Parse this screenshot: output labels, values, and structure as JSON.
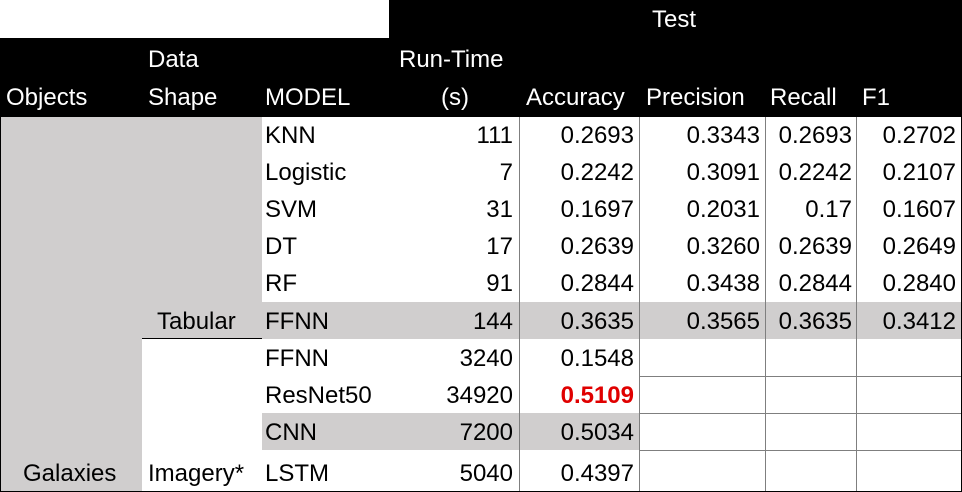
{
  "header": {
    "test": "Test",
    "objects": "Objects",
    "data_shape_line1": "Data",
    "data_shape_line2": "Shape",
    "model": "MODEL",
    "runtime_line1": "Run-Time",
    "runtime_line2": "(s)",
    "accuracy": "Accuracy",
    "precision": "Precision",
    "recall": "Recall",
    "f1": "F1"
  },
  "groups": {
    "objects": "Galaxies",
    "tabular": "Tabular",
    "imagery": "Imagery*"
  },
  "rows": [
    {
      "model": "KNN",
      "runtime": "111",
      "accuracy": "0.2693",
      "precision": "0.3343",
      "recall": "0.2693",
      "f1": "0.2702"
    },
    {
      "model": "Logistic",
      "runtime": "7",
      "accuracy": "0.2242",
      "precision": "0.3091",
      "recall": "0.2242",
      "f1": "0.2107"
    },
    {
      "model": "SVM",
      "runtime": "31",
      "accuracy": "0.1697",
      "precision": "0.2031",
      "recall": "0.17",
      "f1": "0.1607"
    },
    {
      "model": "DT",
      "runtime": "17",
      "accuracy": "0.2639",
      "precision": "0.3260",
      "recall": "0.2639",
      "f1": "0.2649"
    },
    {
      "model": "RF",
      "runtime": "91",
      "accuracy": "0.2844",
      "precision": "0.3438",
      "recall": "0.2844",
      "f1": "0.2840"
    },
    {
      "model": "FFNN",
      "runtime": "144",
      "accuracy": "0.3635",
      "precision": "0.3565",
      "recall": "0.3635",
      "f1": "0.3412"
    },
    {
      "model": "FFNN",
      "runtime": "3240",
      "accuracy": "0.1548",
      "precision": "",
      "recall": "",
      "f1": ""
    },
    {
      "model": "ResNet50",
      "runtime": "34920",
      "accuracy": "0.5109",
      "precision": "",
      "recall": "",
      "f1": ""
    },
    {
      "model": "CNN",
      "runtime": "7200",
      "accuracy": "0.5034",
      "precision": "",
      "recall": "",
      "f1": ""
    },
    {
      "model": "LSTM",
      "runtime": "5040",
      "accuracy": "0.4397",
      "precision": "",
      "recall": "",
      "f1": ""
    }
  ],
  "colors": {
    "header_bg": "#000000",
    "shade": "#d0cece",
    "best_value": "#e00000"
  }
}
